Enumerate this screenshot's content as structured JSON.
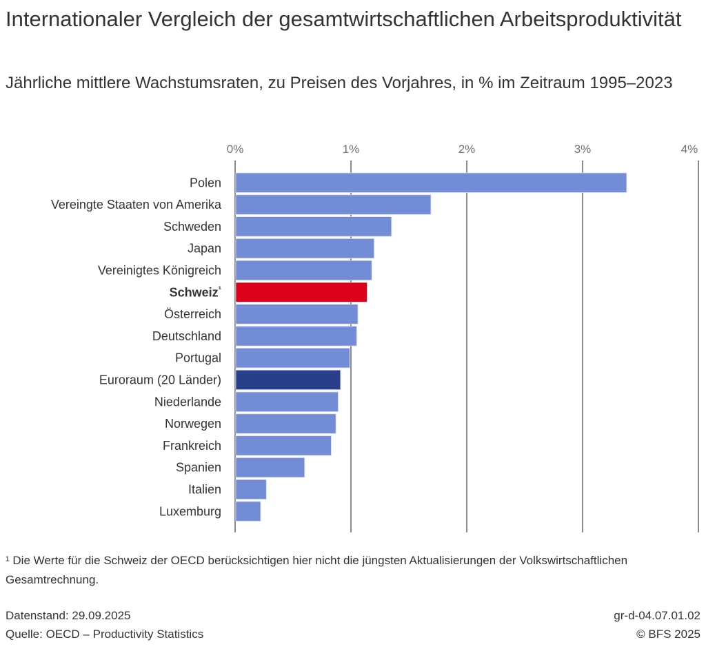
{
  "title": "Internationaler Vergleich der gesamtwirtschaftlichen Arbeitsproduktivität",
  "subtitle": "Jährliche mittlere Wachstumsraten, zu Preisen des Vorjahres, in % im Zeitraum 1995–2023",
  "chart_data": {
    "type": "bar",
    "orientation": "horizontal",
    "title": "Internationaler Vergleich der gesamtwirtschaftlichen Arbeitsproduktivität",
    "subtitle": "Jährliche mittlere Wachstumsraten, zu Preisen des Vorjahres, in % im Zeitraum 1995–2023",
    "xlabel": "",
    "ylabel": "",
    "xlim": [
      0,
      4
    ],
    "ticks": [
      0,
      1,
      2,
      3,
      4
    ],
    "tick_labels": [
      "0%",
      "1%",
      "2%",
      "3%",
      "4%"
    ],
    "grid": true,
    "categories": [
      "Polen",
      "Vereingte Staaten von Amerika",
      "Schweden",
      "Japan",
      "Vereinigtes Königreich",
      "Schweiz",
      "Österreich",
      "Deutschland",
      "Portugal",
      "Euroraum (20 Länder)",
      "Niederlande",
      "Norwegen",
      "Frankreich",
      "Spanien",
      "Italien",
      "Luxemburg"
    ],
    "category_suffix": {
      "Schweiz": "¹"
    },
    "bold_categories": [
      "Schweiz"
    ],
    "values": [
      3.38,
      1.69,
      1.35,
      1.2,
      1.18,
      1.14,
      1.06,
      1.05,
      0.99,
      0.91,
      0.89,
      0.87,
      0.83,
      0.6,
      0.27,
      0.22
    ],
    "colors": {
      "default": "#728dd6",
      "Schweiz": "#dc001a",
      "Euroraum (20 Länder)": "#293f8b"
    }
  },
  "footnote": "¹ Die Werte für die Schweiz der OECD berücksichtigen hier nicht die jüngsten Aktualisierungen der Volkswirtschaftlichen Gesamtrechnung.",
  "datenstand": "Datenstand: 29.09.2025",
  "quelle": "Quelle: OECD – Productivity Statistics",
  "code": "gr-d-04.07.01.02",
  "copyright": "© BFS 2025"
}
